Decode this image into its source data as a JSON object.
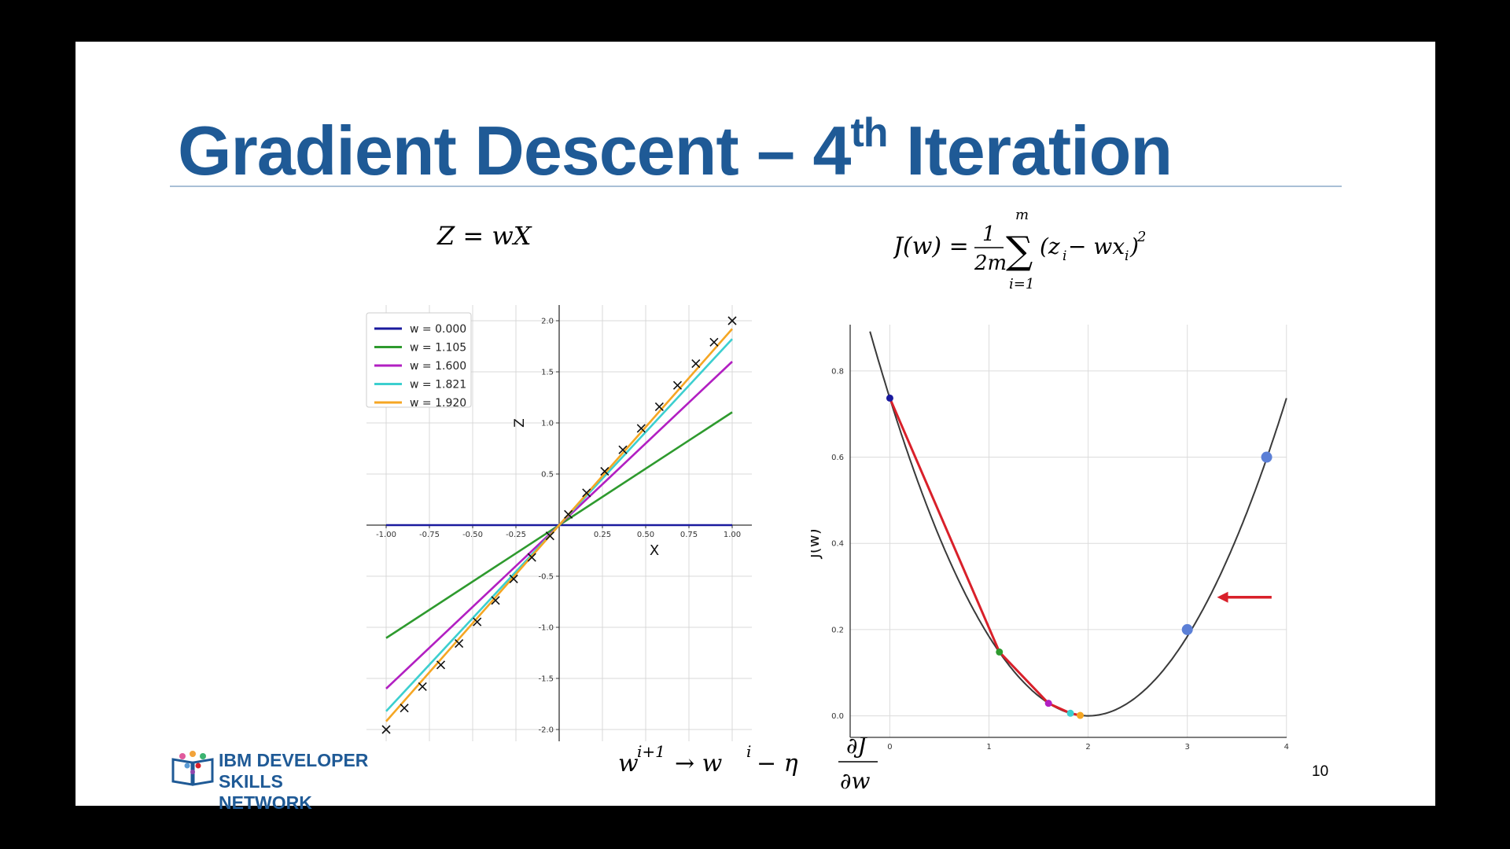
{
  "slide": {
    "title_main": "Gradient Descent – 4",
    "title_sup": "th",
    "title_end": " Iteration",
    "page_number": "10",
    "logo_line1": "IBM DEVELOPER",
    "logo_line2": "SKILLS NETWORK"
  },
  "equations": {
    "model": "Z = wX",
    "cost_lhs": "J(w) =",
    "cost_num": "1",
    "cost_den": "2m",
    "sum_top": "m",
    "sum_bottom": "i=1",
    "cost_rhs": "(z",
    "cost_rhs_sub": "i",
    "cost_rhs_mid": " − wx",
    "cost_rhs_end": ")",
    "cost_exp": "2",
    "update_lhs": "w",
    "update_lhs_sup": "i+1",
    "update_arrow": " → w",
    "update_sup2": "i",
    "update_mid": " − η",
    "update_num": "∂J",
    "update_den": "∂w"
  },
  "chart_data": [
    {
      "type": "line",
      "xlabel": "X",
      "ylabel": "Z",
      "xlim": [
        -1.0,
        1.0
      ],
      "ylim": [
        -2.0,
        2.0
      ],
      "xticks": [
        "-1.00",
        "-0.75",
        "-0.50",
        "-0.25",
        "0.25",
        "0.50",
        "0.75",
        "1.00"
      ],
      "xtick_values": [
        -1.0,
        -0.75,
        -0.5,
        -0.25,
        0.25,
        0.5,
        0.75,
        1.0
      ],
      "yticks": [
        "-2.0",
        "-1.5",
        "-1.0",
        "-0.5",
        "0.5",
        "1.0",
        "1.5",
        "2.0"
      ],
      "ytick_values": [
        -2.0,
        -1.5,
        -1.0,
        -0.5,
        0.5,
        1.0,
        1.5,
        2.0
      ],
      "grid": true,
      "legend_position": "top-left",
      "series": [
        {
          "name": "w = 0.000",
          "slope": 0.0,
          "color": "#1a1a9e"
        },
        {
          "name": "w = 1.105",
          "slope": 1.105,
          "color": "#2e9a2e"
        },
        {
          "name": "w = 1.600",
          "slope": 1.6,
          "color": "#b21fc2"
        },
        {
          "name": "w = 1.821",
          "slope": 1.821,
          "color": "#3ccfcf"
        },
        {
          "name": "w = 1.920",
          "slope": 1.92,
          "color": "#f5a623"
        }
      ],
      "points": {
        "marker": "x",
        "x": [
          -1.0,
          -0.895,
          -0.79,
          -0.684,
          -0.579,
          -0.474,
          -0.368,
          -0.263,
          -0.158,
          -0.053,
          0.053,
          0.158,
          0.263,
          0.368,
          0.474,
          0.579,
          0.684,
          0.79,
          0.895,
          1.0
        ],
        "y": [
          -2.0,
          -1.79,
          -1.58,
          -1.368,
          -1.158,
          -0.947,
          -0.737,
          -0.526,
          -0.316,
          -0.105,
          0.105,
          0.316,
          0.526,
          0.737,
          0.947,
          1.158,
          1.368,
          1.58,
          1.79,
          2.0
        ]
      }
    },
    {
      "type": "line",
      "xlabel": "w",
      "ylabel": "J(w)",
      "xlim": [
        -0.4,
        4.2
      ],
      "ylim": [
        -0.05,
        0.88
      ],
      "xticks": [
        "0",
        "1",
        "2",
        "3",
        "4"
      ],
      "xtick_values": [
        0,
        1,
        2,
        3,
        4
      ],
      "yticks": [
        "0.0",
        "0.2",
        "0.4",
        "0.6",
        "0.8"
      ],
      "ytick_values": [
        0.0,
        0.2,
        0.4,
        0.6,
        0.8
      ],
      "grid": true,
      "curve": {
        "form": "a*(w-2)^2",
        "a": 0.1842,
        "w_range": [
          -0.2,
          4.0
        ],
        "color": "#3a3a3a"
      },
      "descent_path": {
        "color": "#d9202a",
        "w": [
          0.0,
          1.105,
          1.6,
          1.821,
          1.92
        ],
        "J": [
          0.737,
          0.148,
          0.029,
          0.006,
          0.001
        ],
        "point_colors": [
          "#1a1a9e",
          "#2e9a2e",
          "#b21fc2",
          "#3ccfcf",
          "#f5a623"
        ]
      },
      "reference_points": {
        "w": [
          3.0,
          3.8
        ],
        "J": [
          0.2,
          0.6
        ],
        "color": "#5b7fd6"
      },
      "arrow": {
        "color": "#d9202a",
        "direction": "left",
        "w_tail": 3.85,
        "w_head": 3.3,
        "J": 0.275
      }
    }
  ]
}
